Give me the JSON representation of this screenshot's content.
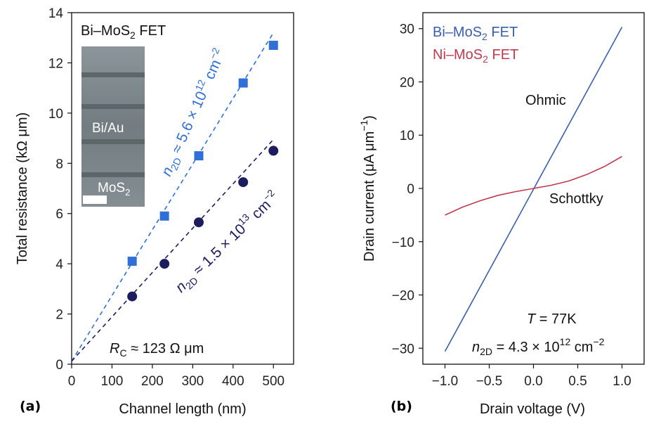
{
  "panels": {
    "a": "(a)",
    "b": "(b)"
  },
  "chart_data": [
    {
      "type": "scatter",
      "xlabel": "Channel length (nm)",
      "ylabel": "Total resistance (kΩ μm)",
      "xlim": [
        0,
        550
      ],
      "ylim": [
        0,
        14
      ],
      "xticks": [
        0,
        100,
        200,
        300,
        400,
        500
      ],
      "yticks": [
        0,
        2,
        4,
        6,
        8,
        10,
        12,
        14
      ],
      "grid": false,
      "series": [
        {
          "marker": "square",
          "color": "#2f6fd6",
          "x": [
            150,
            230,
            315,
            425,
            500
          ],
          "values": [
            4.1,
            5.9,
            8.3,
            11.2,
            12.7
          ],
          "fit": {
            "x": [
              0,
              500
            ],
            "y": [
              0.12,
              13.2
            ],
            "style": "dashed"
          },
          "annotation": {
            "n2D": "5.6 × 10",
            "exp": "12",
            "unit": " cm",
            "unit_exp": "−2"
          }
        },
        {
          "marker": "circle",
          "color": "#1c1c5e",
          "x": [
            150,
            230,
            315,
            425,
            500
          ],
          "values": [
            2.7,
            4.0,
            5.65,
            7.25,
            8.5
          ],
          "fit": {
            "x": [
              0,
              500
            ],
            "y": [
              0.12,
              8.95
            ],
            "style": "dashed"
          },
          "annotation": {
            "n2D": "1.5 × 10",
            "exp": "13",
            "unit": " cm",
            "unit_exp": "−2"
          }
        }
      ],
      "rc_label": {
        "sym": "R",
        "sub": "C",
        "text": " ≈ 123 Ω μm"
      },
      "inset": {
        "title_main": "Bi–MoS",
        "title_sub": "2",
        "title_end": " FET",
        "label_top": "Bi/Au",
        "label_bottom_main": "MoS",
        "label_bottom_sub": "2"
      }
    },
    {
      "type": "line",
      "xlabel": "Drain voltage (V)",
      "ylabel": "Drain current (μA μm",
      "ylabel_sup": "−1",
      "ylabel_end": ")",
      "xlim": [
        -1.25,
        1.25
      ],
      "ylim": [
        -33,
        33
      ],
      "xticks": [
        -1.0,
        -0.5,
        0.0,
        0.5,
        1.0
      ],
      "xtick_labels": [
        "−1.0",
        "−0.5",
        "0.0",
        "0.5",
        "1.0"
      ],
      "yticks": [
        -30,
        -20,
        -10,
        0,
        10,
        20,
        30
      ],
      "ytick_labels": [
        "−30",
        "−20",
        "−10",
        "0",
        "10",
        "20",
        "30"
      ],
      "grid": false,
      "series": [
        {
          "name_main": "Bi–MoS",
          "name_sub": "2",
          "name_end": " FET",
          "color": "#3a5fa8",
          "x": [
            -1.0,
            1.0
          ],
          "values": [
            -30.6,
            30.3
          ],
          "label": "Ohmic"
        },
        {
          "name_main": "Ni–MoS",
          "name_sub": "2",
          "name_end": " FET",
          "color": "#c0394f",
          "x": [
            -1.0,
            -0.8,
            -0.6,
            -0.4,
            -0.2,
            0.0,
            0.2,
            0.4,
            0.6,
            0.8,
            1.0
          ],
          "values": [
            -5.0,
            -3.5,
            -2.3,
            -1.3,
            -0.6,
            0.0,
            0.6,
            1.4,
            2.6,
            4.1,
            6.0
          ],
          "label": "Schottky"
        }
      ],
      "temp_label": {
        "sym": "T",
        "text": " = 77K"
      },
      "n2d_label": {
        "sym": "n",
        "sub": "2D",
        "text": " = 4.3 × 10",
        "exp": "12",
        "unit": " cm",
        "unit_exp": "−2"
      }
    }
  ]
}
